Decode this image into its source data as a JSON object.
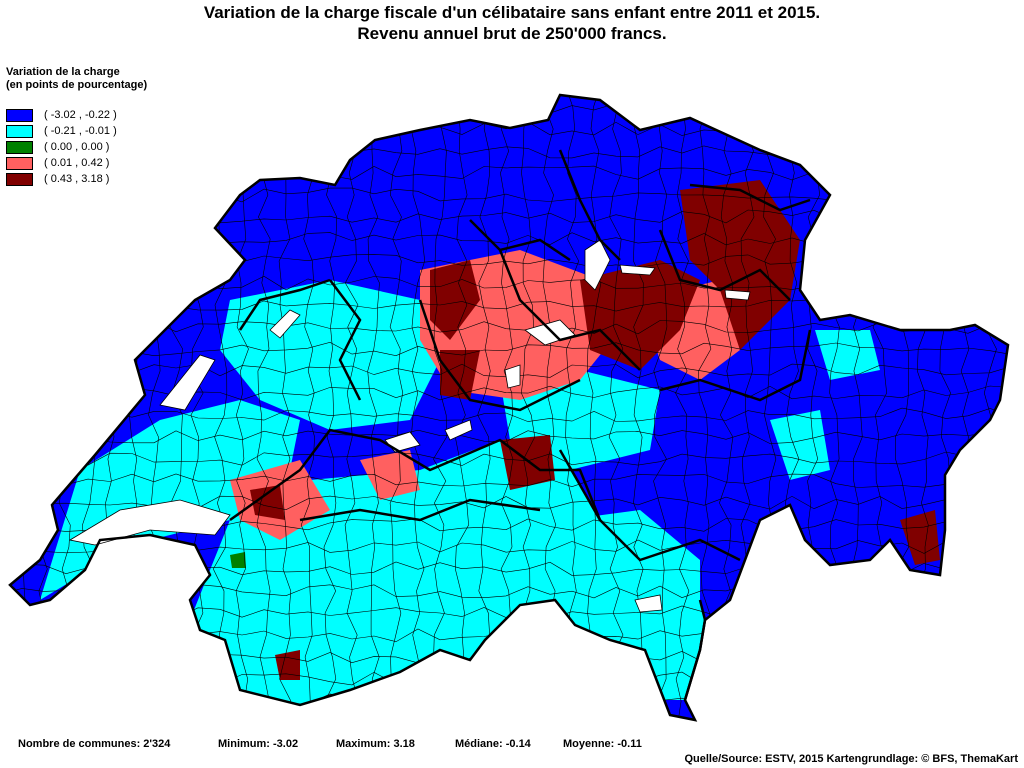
{
  "title": {
    "line1": "Variation de la charge fiscale d'un célibataire sans enfant entre 2011 et 2015.",
    "line2": "Revenu annuel brut de 250'000 francs."
  },
  "legend": {
    "title_line1": "Variation de la charge",
    "title_line2": "(en points de pourcentage)",
    "classes": [
      {
        "label": "( -3.02 , -0.22 )",
        "color": "#0000ff"
      },
      {
        "label": "( -0.21 , -0.01 )",
        "color": "#00ffff"
      },
      {
        "label": "( 0.00 , 0.00 )",
        "color": "#008000"
      },
      {
        "label": "( 0.01 , 0.42 )",
        "color": "#ff6060"
      },
      {
        "label": "( 0.43 , 3.18 )",
        "color": "#800000"
      }
    ]
  },
  "stats": {
    "communes": "Nombre de communes: 2'324",
    "minimum": "Minimum: -3.02",
    "maximum": "Maximum: 3.18",
    "median": "Médiane: -0.14",
    "mean": "Moyenne: -0.11"
  },
  "source": "Quelle/Source: ESTV, 2015 Kartengrundlage: © BFS, ThemaKart"
}
